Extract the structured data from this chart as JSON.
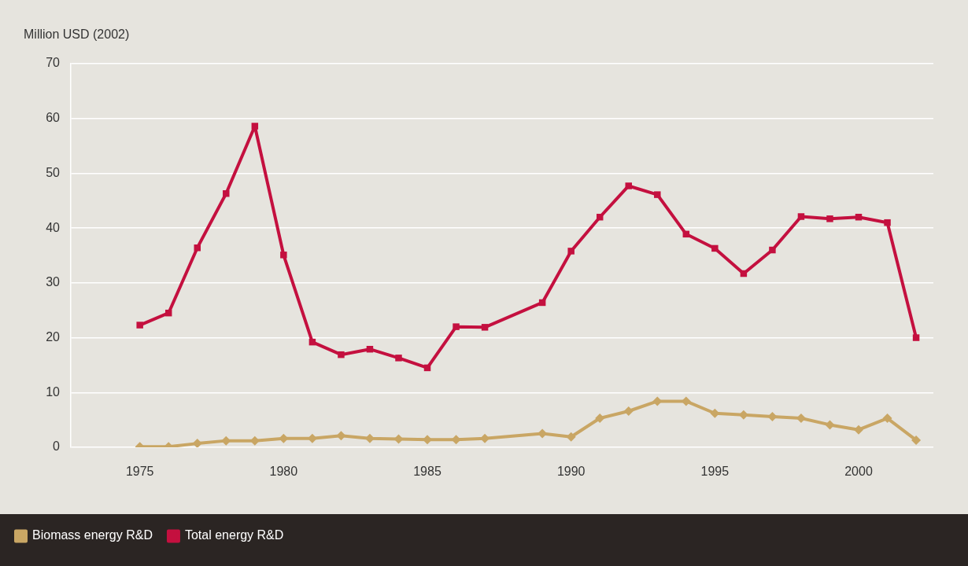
{
  "chart_data": {
    "type": "line",
    "ylabel": "Million USD (2002)",
    "x": [
      1975,
      1976,
      1977,
      1978,
      1979,
      1980,
      1981,
      1982,
      1983,
      1984,
      1985,
      1986,
      1987,
      1988,
      1989,
      1990,
      1991,
      1992,
      1993,
      1994,
      1995,
      1996,
      1997,
      1998,
      1999,
      2000,
      2001,
      2002
    ],
    "series": [
      {
        "name": "Biomass energy R&D",
        "color": "#c9a664",
        "marker": "diamond",
        "values": [
          0.1,
          0.1,
          0.7,
          1.2,
          1.2,
          1.6,
          1.6,
          2.1,
          1.6,
          1.5,
          1.4,
          1.4,
          1.6,
          null,
          2.5,
          1.9,
          5.3,
          6.6,
          8.4,
          8.4,
          6.2,
          5.9,
          5.6,
          5.3,
          4.1,
          3.2,
          5.3,
          1.3
        ]
      },
      {
        "name": "Total energy R&D",
        "color": "#c4103f",
        "marker": "square",
        "values": [
          22.3,
          24.5,
          36.4,
          46.3,
          58.6,
          35.1,
          19.2,
          16.9,
          17.9,
          16.3,
          14.5,
          22.0,
          21.9,
          null,
          26.4,
          35.8,
          42.0,
          47.7,
          46.1,
          38.9,
          36.3,
          31.7,
          36.0,
          42.1,
          41.7,
          42.0,
          41.0,
          20.0
        ]
      }
    ],
    "xlim": [
      1972.6,
      2002.6
    ],
    "xticks": [
      1975,
      1980,
      1985,
      1990,
      1995,
      2000
    ],
    "ylim": [
      0,
      70
    ],
    "yticks": [
      0,
      10,
      20,
      30,
      40,
      50,
      60,
      70
    ],
    "grid": "y",
    "legend": "bottom",
    "line_style": "solid"
  }
}
